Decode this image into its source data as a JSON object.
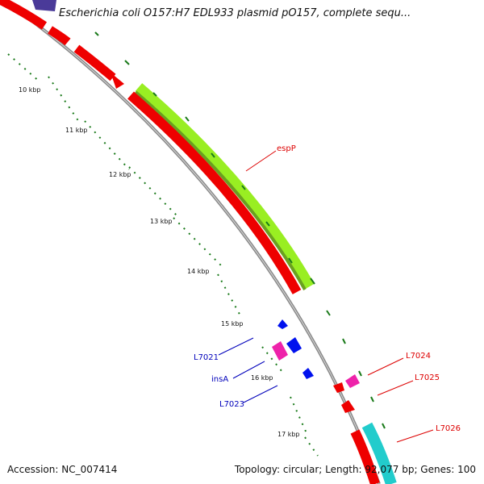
{
  "header": {
    "title": "Escherichia coli O157:H7 EDL933 plasmid pO157, complete sequ..."
  },
  "footer": {
    "accession": "Accession: NC_007414",
    "summary": "Topology: circular; Length: 92,077 bp; Genes: 100"
  },
  "colors": {
    "backbone": "#8a8a8a",
    "cds_forward": "#ff0000",
    "cds_reverse": "#ff0000",
    "espP_gene": "#99ee22",
    "insertion": "#ee22aa",
    "blue_feature": "#0011ee",
    "cyan_feature": "#22cccc",
    "dark_blue_feature": "#4a3a99",
    "tick": "#1a7a1a",
    "label_red": "#dd0000",
    "label_blue": "#0000bb"
  },
  "scale": {
    "tick_labels": [
      "10 kbp",
      "11 kbp",
      "12 kbp",
      "13 kbp",
      "14 kbp",
      "15 kbp",
      "16 kbp",
      "17 kbp"
    ]
  },
  "gene_labels": [
    {
      "id": "espP",
      "text": "espP",
      "color": "label_red"
    },
    {
      "id": "L7024",
      "text": "L7024",
      "color": "label_red"
    },
    {
      "id": "L7025",
      "text": "L7025",
      "color": "label_red"
    },
    {
      "id": "L7026",
      "text": "L7026",
      "color": "label_red"
    },
    {
      "id": "L7021",
      "text": "L7021",
      "color": "label_blue"
    },
    {
      "id": "insA",
      "text": "insA",
      "color": "label_blue"
    },
    {
      "id": "L7023",
      "text": "L7023",
      "color": "label_blue"
    }
  ]
}
